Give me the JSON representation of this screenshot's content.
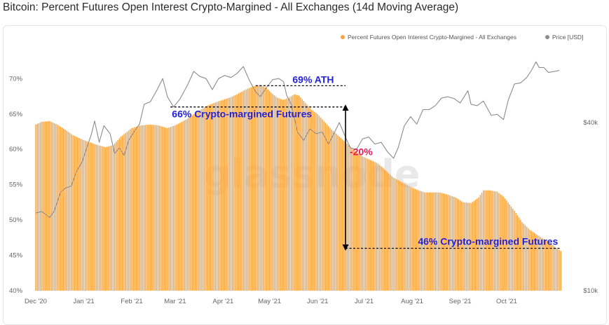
{
  "title": "Bitcoin: Percent Futures Open Interest Crypto-Margined - All Exchanges (14d Moving Average)",
  "watermark": "glassnode",
  "chart_data": {
    "type": "bar",
    "grid": false,
    "legend": {
      "placement": "top-right",
      "entries": [
        {
          "name": "Percent Futures Open Interest Crypto-Margined - All Exchanges",
          "color": "#f7a541"
        },
        {
          "name": "Price [USD]",
          "color": "#8c8c8c"
        }
      ]
    },
    "x_axis": {
      "range": [
        "2020-12-01",
        "2021-11-18"
      ],
      "tick_labels": [
        "Dec '20",
        "Jan '21",
        "Feb '21",
        "Mar '21",
        "Apr '21",
        "May '21",
        "Jun '21",
        "Jul '21",
        "Aug '21",
        "Sep '21",
        "Oct '21"
      ],
      "tick_dates": [
        "2020-12-01",
        "2021-01-01",
        "2021-02-01",
        "2021-03-01",
        "2021-04-01",
        "2021-05-01",
        "2021-06-01",
        "2021-07-01",
        "2021-08-01",
        "2021-09-01",
        "2021-10-01"
      ]
    },
    "y_left": {
      "range": [
        40,
        73.5
      ],
      "ticks": [
        40,
        45,
        50,
        55,
        60,
        65,
        70
      ],
      "tick_labels": [
        "40%",
        "45%",
        "50%",
        "55%",
        "60%",
        "65%",
        "70%"
      ]
    },
    "y_right": {
      "scale": "log",
      "ticks": [
        10000,
        40000
      ],
      "tick_labels": [
        "$10k",
        "$40k"
      ]
    },
    "series": [
      {
        "name": "Percent Futures Open Interest Crypto-Margined - All Exchanges",
        "kind": "bar",
        "axis": "left",
        "color": "#f7a541",
        "points": [
          [
            "2020-12-01",
            63.5
          ],
          [
            "2020-12-05",
            63.9
          ],
          [
            "2020-12-10",
            64.0
          ],
          [
            "2020-12-15",
            63.5
          ],
          [
            "2020-12-20",
            62.8
          ],
          [
            "2020-12-25",
            62.0
          ],
          [
            "2021-01-01",
            61.3
          ],
          [
            "2021-01-05",
            61.0
          ],
          [
            "2021-01-10",
            60.6
          ],
          [
            "2021-01-15",
            60.3
          ],
          [
            "2021-01-20",
            60.6
          ],
          [
            "2021-01-25",
            61.8
          ],
          [
            "2021-02-01",
            63.0
          ],
          [
            "2021-02-07",
            63.4
          ],
          [
            "2021-02-13",
            63.5
          ],
          [
            "2021-02-18",
            63.4
          ],
          [
            "2021-02-24",
            63.0
          ],
          [
            "2021-03-01",
            63.4
          ],
          [
            "2021-03-08",
            64.2
          ],
          [
            "2021-03-15",
            65.3
          ],
          [
            "2021-03-22",
            66.2
          ],
          [
            "2021-03-29",
            66.8
          ],
          [
            "2021-04-05",
            67.3
          ],
          [
            "2021-04-10",
            67.8
          ],
          [
            "2021-04-15",
            68.4
          ],
          [
            "2021-04-20",
            68.9
          ],
          [
            "2021-04-25",
            69.1
          ],
          [
            "2021-04-29",
            68.7
          ],
          [
            "2021-05-02",
            68.0
          ],
          [
            "2021-05-06",
            67.3
          ],
          [
            "2021-05-10",
            67.0
          ],
          [
            "2021-05-14",
            67.4
          ],
          [
            "2021-05-17",
            67.8
          ],
          [
            "2021-05-20",
            67.6
          ],
          [
            "2021-05-24",
            66.6
          ],
          [
            "2021-05-28",
            65.6
          ],
          [
            "2021-06-01",
            65.0
          ],
          [
            "2021-06-05",
            64.0
          ],
          [
            "2021-06-10",
            62.8
          ],
          [
            "2021-06-15",
            61.8
          ],
          [
            "2021-06-20",
            60.8
          ],
          [
            "2021-06-25",
            59.8
          ],
          [
            "2021-06-30",
            59.0
          ],
          [
            "2021-07-05",
            58.5
          ],
          [
            "2021-07-10",
            58.0
          ],
          [
            "2021-07-15",
            57.0
          ],
          [
            "2021-07-20",
            56.0
          ],
          [
            "2021-07-25",
            55.4
          ],
          [
            "2021-07-30",
            54.8
          ],
          [
            "2021-08-04",
            54.3
          ],
          [
            "2021-08-09",
            53.9
          ],
          [
            "2021-08-14",
            53.9
          ],
          [
            "2021-08-19",
            53.9
          ],
          [
            "2021-08-24",
            53.6
          ],
          [
            "2021-08-29",
            53.2
          ],
          [
            "2021-09-03",
            52.5
          ],
          [
            "2021-09-08",
            52.4
          ],
          [
            "2021-09-13",
            53.2
          ],
          [
            "2021-09-16",
            54.2
          ],
          [
            "2021-09-20",
            54.2
          ],
          [
            "2021-09-25",
            54.0
          ],
          [
            "2021-09-29",
            53.3
          ],
          [
            "2021-10-03",
            52.2
          ],
          [
            "2021-10-07",
            51.0
          ],
          [
            "2021-10-11",
            49.7
          ],
          [
            "2021-10-16",
            48.6
          ],
          [
            "2021-10-20",
            48.0
          ],
          [
            "2021-10-25",
            47.3
          ],
          [
            "2021-10-30",
            46.6
          ],
          [
            "2021-11-03",
            45.9
          ],
          [
            "2021-11-05",
            45.6
          ]
        ]
      },
      {
        "name": "Price [USD]",
        "kind": "line",
        "axis": "right",
        "color": "#8c8c8c",
        "points": [
          [
            "2020-12-01",
            19000
          ],
          [
            "2020-12-05",
            19200
          ],
          [
            "2020-12-10",
            18300
          ],
          [
            "2020-12-13",
            19300
          ],
          [
            "2020-12-17",
            22500
          ],
          [
            "2020-12-20",
            23300
          ],
          [
            "2020-12-24",
            23700
          ],
          [
            "2020-12-27",
            26500
          ],
          [
            "2020-12-31",
            29000
          ],
          [
            "2021-01-03",
            32500
          ],
          [
            "2021-01-06",
            36500
          ],
          [
            "2021-01-08",
            40500
          ],
          [
            "2021-01-11",
            34000
          ],
          [
            "2021-01-14",
            39000
          ],
          [
            "2021-01-18",
            36500
          ],
          [
            "2021-01-21",
            31000
          ],
          [
            "2021-01-24",
            32500
          ],
          [
            "2021-01-27",
            30500
          ],
          [
            "2021-01-30",
            34500
          ],
          [
            "2021-02-03",
            37500
          ],
          [
            "2021-02-06",
            39500
          ],
          [
            "2021-02-09",
            46500
          ],
          [
            "2021-02-13",
            47500
          ],
          [
            "2021-02-17",
            52000
          ],
          [
            "2021-02-21",
            57500
          ],
          [
            "2021-02-24",
            49500
          ],
          [
            "2021-02-28",
            45500
          ],
          [
            "2021-03-04",
            48500
          ],
          [
            "2021-03-09",
            54500
          ],
          [
            "2021-03-13",
            61000
          ],
          [
            "2021-03-17",
            58500
          ],
          [
            "2021-03-21",
            57500
          ],
          [
            "2021-03-25",
            52500
          ],
          [
            "2021-03-29",
            57500
          ],
          [
            "2021-04-02",
            59000
          ],
          [
            "2021-04-06",
            58000
          ],
          [
            "2021-04-10",
            60000
          ],
          [
            "2021-04-14",
            63500
          ],
          [
            "2021-04-18",
            56500
          ],
          [
            "2021-04-22",
            51500
          ],
          [
            "2021-04-25",
            49500
          ],
          [
            "2021-04-29",
            53500
          ],
          [
            "2021-05-03",
            57000
          ],
          [
            "2021-05-07",
            57500
          ],
          [
            "2021-05-10",
            56000
          ],
          [
            "2021-05-12",
            50000
          ],
          [
            "2021-05-15",
            46500
          ],
          [
            "2021-05-19",
            37000
          ],
          [
            "2021-05-23",
            34500
          ],
          [
            "2021-05-27",
            38000
          ],
          [
            "2021-05-31",
            36500
          ],
          [
            "2021-06-04",
            37000
          ],
          [
            "2021-06-08",
            33500
          ],
          [
            "2021-06-12",
            37000
          ],
          [
            "2021-06-15",
            40000
          ],
          [
            "2021-06-19",
            35500
          ],
          [
            "2021-06-22",
            32500
          ],
          [
            "2021-06-26",
            32000
          ],
          [
            "2021-06-30",
            35000
          ],
          [
            "2021-07-04",
            35500
          ],
          [
            "2021-07-08",
            33500
          ],
          [
            "2021-07-12",
            34000
          ],
          [
            "2021-07-16",
            31500
          ],
          [
            "2021-07-20",
            29800
          ],
          [
            "2021-07-23",
            32500
          ],
          [
            "2021-07-27",
            39000
          ],
          [
            "2021-07-31",
            42000
          ],
          [
            "2021-08-04",
            39500
          ],
          [
            "2021-08-08",
            44500
          ],
          [
            "2021-08-12",
            44500
          ],
          [
            "2021-08-16",
            46000
          ],
          [
            "2021-08-20",
            49000
          ],
          [
            "2021-08-24",
            49500
          ],
          [
            "2021-08-28",
            48800
          ],
          [
            "2021-09-01",
            47000
          ],
          [
            "2021-09-06",
            52000
          ],
          [
            "2021-09-08",
            46500
          ],
          [
            "2021-09-12",
            46000
          ],
          [
            "2021-09-16",
            47800
          ],
          [
            "2021-09-21",
            42500
          ],
          [
            "2021-09-25",
            42800
          ],
          [
            "2021-09-29",
            41000
          ],
          [
            "2021-10-02",
            48000
          ],
          [
            "2021-10-06",
            55000
          ],
          [
            "2021-10-10",
            55500
          ],
          [
            "2021-10-14",
            58000
          ],
          [
            "2021-10-17",
            61500
          ],
          [
            "2021-10-20",
            66000
          ],
          [
            "2021-10-22",
            63000
          ],
          [
            "2021-10-25",
            63000
          ],
          [
            "2021-10-28",
            60500
          ],
          [
            "2021-11-01",
            61000
          ],
          [
            "2021-11-04",
            61500
          ]
        ]
      }
    ],
    "annotations": [
      {
        "text": "69% ATH",
        "color": "#2323d6",
        "value": 69,
        "from": "2021-04-22",
        "to": "2021-06-19"
      },
      {
        "text": "66% Crypto-margined Futures",
        "color": "#2323d6",
        "value": 66,
        "from": "2021-02-26",
        "to": "2021-06-19"
      },
      {
        "text": "46% Crypto-margined Futures",
        "color": "#2323d6",
        "value": 46,
        "from": "2021-06-19",
        "to": "2021-11-05"
      },
      {
        "text": "-20%",
        "color": "#e8195a",
        "arrow": {
          "date": "2021-06-19",
          "from": 66,
          "to": 46
        }
      }
    ]
  }
}
